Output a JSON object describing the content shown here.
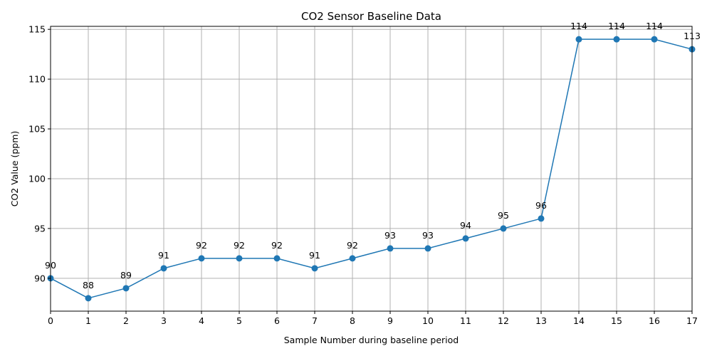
{
  "chart_data": {
    "type": "line",
    "title": "CO2 Sensor Baseline Data",
    "xlabel": "Sample Number during baseline period",
    "ylabel": "CO2 Value (ppm)",
    "x": [
      0,
      1,
      2,
      3,
      4,
      5,
      6,
      7,
      8,
      9,
      10,
      11,
      12,
      13,
      14,
      15,
      16,
      17
    ],
    "series": [
      {
        "values": [
          90,
          88,
          89,
          91,
          92,
          92,
          92,
          91,
          92,
          93,
          93,
          94,
          95,
          96,
          114,
          114,
          114,
          113
        ],
        "color": "#1f77b4",
        "marker": "circle"
      }
    ],
    "data_labels": [
      "90",
      "88",
      "89",
      "91",
      "92",
      "92",
      "92",
      "91",
      "92",
      "93",
      "93",
      "94",
      "95",
      "96",
      "114",
      "114",
      "114",
      "113"
    ],
    "xticks": [
      "0",
      "1",
      "2",
      "3",
      "4",
      "5",
      "6",
      "7",
      "8",
      "9",
      "10",
      "11",
      "12",
      "13",
      "14",
      "15",
      "16",
      "17"
    ],
    "yticks": [
      "90",
      "95",
      "100",
      "105",
      "110",
      "115"
    ],
    "xlim": [
      0,
      17
    ],
    "ylim": [
      86.7,
      115.3
    ],
    "grid": true
  }
}
